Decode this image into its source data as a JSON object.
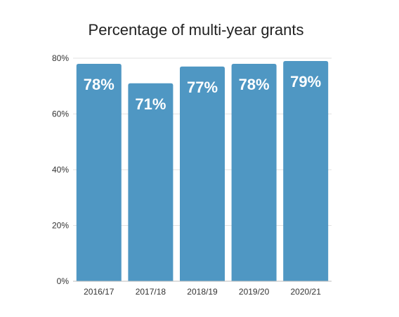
{
  "chart_data": {
    "type": "bar",
    "title": "Percentage of multi-year grants",
    "categories": [
      "2016/17",
      "2017/18",
      "2018/19",
      "2019/20",
      "2020/21"
    ],
    "values": [
      78,
      71,
      77,
      78,
      79
    ],
    "data_labels": [
      "78%",
      "71%",
      "77%",
      "78%",
      "79%"
    ],
    "yticks": [
      0,
      20,
      40,
      60,
      80
    ],
    "ytick_labels": [
      "0%",
      "20%",
      "40%",
      "60%",
      "80%"
    ],
    "ylim": [
      0,
      80
    ],
    "xlabel": "",
    "ylabel": "",
    "grid": true,
    "legend": "none",
    "bar_color": "#4f97c3"
  }
}
